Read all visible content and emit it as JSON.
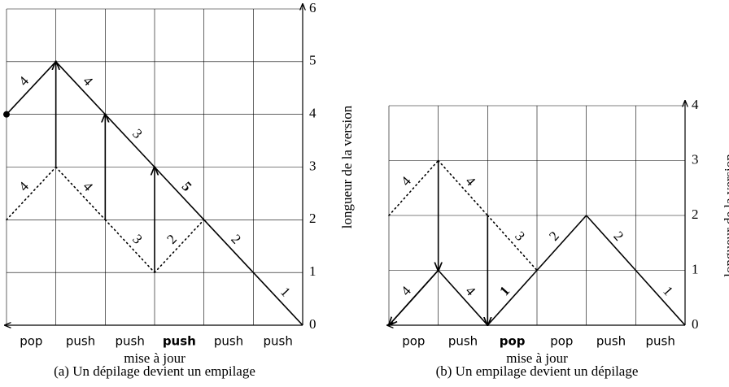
{
  "figures": [
    {
      "ymax": 6,
      "columns": 6,
      "yticks": [
        0,
        1,
        2,
        3,
        4,
        5,
        6
      ],
      "ops": [
        "pop",
        "push",
        "push",
        "push",
        "push",
        "push"
      ],
      "bold_op": 3,
      "xlabel": "mise à jour",
      "ylabel": "longueur de la version",
      "caption": "(a) Un dépilage devient un empilage",
      "start_dot": [
        0,
        4
      ],
      "edges": [
        {
          "from": [
            0,
            4
          ],
          "to": [
            1,
            5
          ],
          "label": "4",
          "style": "solid"
        },
        {
          "from": [
            1,
            5
          ],
          "to": [
            2,
            4
          ],
          "label": "4",
          "style": "solid"
        },
        {
          "from": [
            2,
            4
          ],
          "to": [
            3,
            3
          ],
          "label": "3",
          "style": "solid"
        },
        {
          "from": [
            3,
            3
          ],
          "to": [
            4,
            2
          ],
          "label": "5",
          "style": "bold"
        },
        {
          "from": [
            4,
            2
          ],
          "to": [
            5,
            1
          ],
          "label": "2",
          "style": "solid"
        },
        {
          "from": [
            5,
            1
          ],
          "to": [
            6,
            0
          ],
          "label": "1",
          "style": "solid"
        },
        {
          "from": [
            0,
            2
          ],
          "to": [
            1,
            3
          ],
          "label": "4",
          "style": "dotted"
        },
        {
          "from": [
            1,
            3
          ],
          "to": [
            2,
            2
          ],
          "label": "4",
          "style": "dotted"
        },
        {
          "from": [
            2,
            2
          ],
          "to": [
            3,
            1
          ],
          "label": "3",
          "style": "dotted"
        },
        {
          "from": [
            3,
            1
          ],
          "to": [
            4,
            2
          ],
          "label": "2",
          "style": "dotted"
        }
      ],
      "arrows": [
        {
          "from": [
            1,
            3
          ],
          "to": [
            1,
            5
          ]
        },
        {
          "from": [
            2,
            2
          ],
          "to": [
            2,
            4
          ]
        },
        {
          "from": [
            3,
            1
          ],
          "to": [
            3,
            3
          ]
        }
      ]
    },
    {
      "ymax": 4,
      "columns": 6,
      "yticks": [
        0,
        1,
        2,
        3,
        4
      ],
      "ops": [
        "pop",
        "push",
        "pop",
        "pop",
        "push",
        "push"
      ],
      "bold_op": 2,
      "xlabel": "mise à jour",
      "ylabel": "longueur de la version",
      "caption": "(b) Un empilage devient un dépilage",
      "edges": [
        {
          "from": [
            0,
            0
          ],
          "to": [
            1,
            1
          ],
          "label": "4",
          "style": "solid"
        },
        {
          "from": [
            1,
            1
          ],
          "to": [
            2,
            0
          ],
          "label": "4",
          "style": "solid"
        },
        {
          "from": [
            2,
            0
          ],
          "to": [
            3,
            1
          ],
          "label": "1",
          "style": "bold"
        },
        {
          "from": [
            3,
            1
          ],
          "to": [
            4,
            2
          ],
          "label": "2",
          "style": "solid"
        },
        {
          "from": [
            4,
            2
          ],
          "to": [
            5,
            1
          ],
          "label": "2",
          "style": "solid"
        },
        {
          "from": [
            5,
            1
          ],
          "to": [
            6,
            0
          ],
          "label": "1",
          "style": "solid"
        },
        {
          "from": [
            0,
            2
          ],
          "to": [
            1,
            3
          ],
          "label": "4",
          "style": "dotted"
        },
        {
          "from": [
            1,
            3
          ],
          "to": [
            2,
            2
          ],
          "label": "4",
          "style": "dotted"
        },
        {
          "from": [
            2,
            2
          ],
          "to": [
            3,
            1
          ],
          "label": "3",
          "style": "dotted"
        }
      ],
      "arrows": [
        {
          "from": [
            1,
            3
          ],
          "to": [
            1,
            1
          ]
        },
        {
          "from": [
            2,
            2
          ],
          "to": [
            2,
            0
          ]
        },
        {
          "from": [
            1,
            1
          ],
          "to": [
            0,
            0
          ]
        }
      ]
    }
  ]
}
